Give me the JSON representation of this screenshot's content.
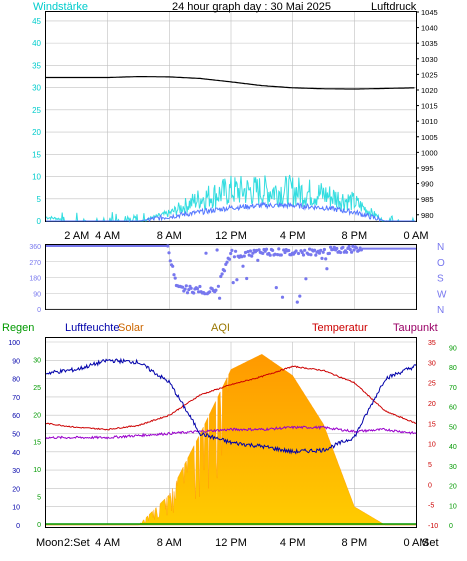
{
  "header": {
    "title": "24 hour graph day : 30 Mai 2025",
    "left_label": "Windstärke",
    "right_label": "Luftdruck"
  },
  "colors": {
    "background": "#ffffff",
    "border": "#000000",
    "grid": "#c0c0c0",
    "wind_axis": "#00cccc",
    "wind_gust": "#33dde0",
    "wind_avg": "#5577ff",
    "pressure": "#000000",
    "direction": "#7777ee",
    "rain": "#009900",
    "humidity": "#0000aa",
    "solar_fill_top": "#ff9900",
    "solar_fill_bottom": "#ffcc00",
    "temperature": "#cc0000",
    "dewpoint": "#9900cc",
    "solar_label": "#cc6600",
    "aqi_label": "#997700",
    "dewpoint_label": "#990066"
  },
  "time_axis": {
    "top_ticks": [
      "2 AM",
      "4 AM",
      "8 AM",
      "12 PM",
      "4 PM",
      "8 PM",
      "0 AM"
    ],
    "bottom_ticks": [
      "4 AM",
      "8 AM",
      "12 PM",
      "4 PM",
      "8 PM",
      "0 AM"
    ],
    "moon_label": "Moon",
    "moonset_label": "Set",
    "sunset_label": "2:Set"
  },
  "chart_data": [
    {
      "type": "line",
      "title": "24 hour graph day : 30 Mai 2025",
      "y_left_label": "Windstärke",
      "y_right_label": "Luftdruck",
      "y_left_range": [
        0,
        47
      ],
      "y_left_ticks": [
        "0",
        "5",
        "10",
        "15",
        "20",
        "25",
        "30",
        "35",
        "40",
        "45"
      ],
      "y_right_range": [
        978,
        1045
      ],
      "y_right_ticks": [
        "980",
        "985",
        "990",
        "995",
        "1000",
        "1005",
        "1010",
        "1015",
        "1020",
        "1025",
        "1030",
        "1035",
        "1040",
        "1045"
      ],
      "x_hours": [
        0,
        2,
        4,
        6,
        8,
        10,
        12,
        14,
        16,
        18,
        20,
        22,
        24
      ],
      "series": [
        {
          "name": "Luftdruck",
          "axis": "right",
          "values": [
            1024,
            1024,
            1024,
            1024.3,
            1024.2,
            1023.7,
            1022.6,
            1021.4,
            1020.7,
            1020.4,
            1020.3,
            1020.5,
            1020.7
          ]
        },
        {
          "axis": "left",
          "values": [
            1,
            0,
            0,
            0,
            2,
            6,
            8,
            8,
            8,
            7,
            5,
            0,
            0
          ]
        },
        {
          "axis": "left",
          "values": [
            0,
            0,
            0,
            0,
            1,
            2,
            3,
            3.5,
            3.5,
            3,
            2,
            0,
            0
          ]
        }
      ]
    },
    {
      "type": "scatter",
      "y_left_ticks": [
        "0",
        "90",
        "180",
        "270",
        "360"
      ],
      "y_right_ticks": [
        "N",
        "W",
        "S",
        "O",
        "N"
      ],
      "y_range": [
        0,
        360
      ],
      "x_hours": [
        0,
        2,
        4,
        6,
        7.9,
        8.5,
        10,
        11,
        12,
        13,
        14,
        16,
        18,
        20,
        22,
        24
      ],
      "values": [
        360,
        360,
        360,
        360,
        360,
        115,
        110,
        100,
        320,
        310,
        330,
        320,
        330,
        345,
        345,
        345
      ]
    },
    {
      "type": "line",
      "legend": [
        "Regen",
        "Luftfeuchte",
        "Solar",
        "AQI",
        "Temperatur",
        "Taupunkt"
      ],
      "y_rain_ticks": [
        "0",
        "5",
        "10",
        "15",
        "20",
        "25",
        "30"
      ],
      "y_humidity_ticks": [
        "0",
        "10",
        "20",
        "30",
        "40",
        "50",
        "60",
        "70",
        "80",
        "90",
        "100"
      ],
      "y_temp_ticks": [
        "-10",
        "-5",
        "0",
        "5",
        "10",
        "15",
        "20",
        "25",
        "30",
        "35"
      ],
      "y_temp_range": [
        -10,
        35
      ],
      "y_right_ticks": [
        "0",
        "10",
        "20",
        "30",
        "40",
        "50",
        "60",
        "70",
        "80",
        "90"
      ],
      "x_hours": [
        0,
        2,
        4,
        6,
        8,
        10,
        12,
        14,
        16,
        18,
        20,
        22,
        24
      ],
      "series": [
        {
          "name": "Luftfeuchte",
          "values": [
            83,
            85,
            90,
            89,
            78,
            50,
            45,
            43,
            40,
            41,
            48,
            80,
            87
          ]
        },
        {
          "name": "Temperatur",
          "values": [
            15,
            14,
            13.5,
            14.5,
            17,
            22,
            24.5,
            26.5,
            29,
            28,
            25,
            18,
            15
          ]
        },
        {
          "name": "Taupunkt",
          "values": [
            11.5,
            11.5,
            11.5,
            12,
            12.5,
            13,
            13.5,
            13.5,
            14,
            14,
            13,
            13.5,
            12.5
          ]
        },
        {
          "name": "Solar",
          "values": [
            0,
            0,
            0,
            0,
            100,
            300,
            510,
            560,
            490,
            330,
            60,
            0,
            0
          ]
        },
        {
          "name": "Regen",
          "values": [
            0,
            0,
            0,
            0,
            0,
            0,
            0,
            0,
            0,
            0,
            0,
            0,
            0
          ]
        }
      ]
    }
  ]
}
